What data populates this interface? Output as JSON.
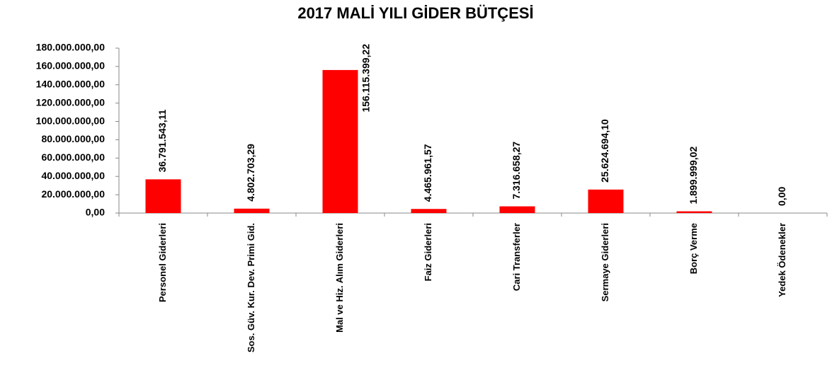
{
  "chart_data": {
    "type": "bar",
    "title": "2017 MALİ YILI GİDER BÜTÇESİ",
    "categories": [
      "Personel Giderleri",
      "Sos. Güv. Kur. Dev. Primi Gid.",
      "Mal ve Hiz. Alım Giderleri",
      "Faiz Giderleri",
      "Cari Transferler",
      "Sermaye Giderleri",
      "Borç Verme",
      "Yedek Ödenekler"
    ],
    "values": [
      36791543.11,
      4802703.29,
      156115399.22,
      4465961.57,
      7316658.27,
      25624694.1,
      1899999.02,
      0
    ],
    "value_labels": [
      "36.791.543,11",
      "4.802.703,29",
      "156.115.399,22",
      "4.465.961,57",
      "7.316.658,27",
      "25.624.694,10",
      "1.899.999,02",
      "0,00"
    ],
    "color": "#ff0000",
    "ylim": [
      0,
      180000000
    ],
    "yticks": [
      {
        "value": 0,
        "label": "0,00"
      },
      {
        "value": 20000000,
        "label": "20.000.000,00"
      },
      {
        "value": 40000000,
        "label": "40.000.000,00"
      },
      {
        "value": 60000000,
        "label": "60.000.000,00"
      },
      {
        "value": 80000000,
        "label": "80.000.000,00"
      },
      {
        "value": 100000000,
        "label": "100.000.000,00"
      },
      {
        "value": 120000000,
        "label": "120.000.000,00"
      },
      {
        "value": 140000000,
        "label": "140.000.000,00"
      },
      {
        "value": 160000000,
        "label": "160.000.000,00"
      },
      {
        "value": 180000000,
        "label": "180.000.000,00"
      }
    ],
    "grid": false
  }
}
